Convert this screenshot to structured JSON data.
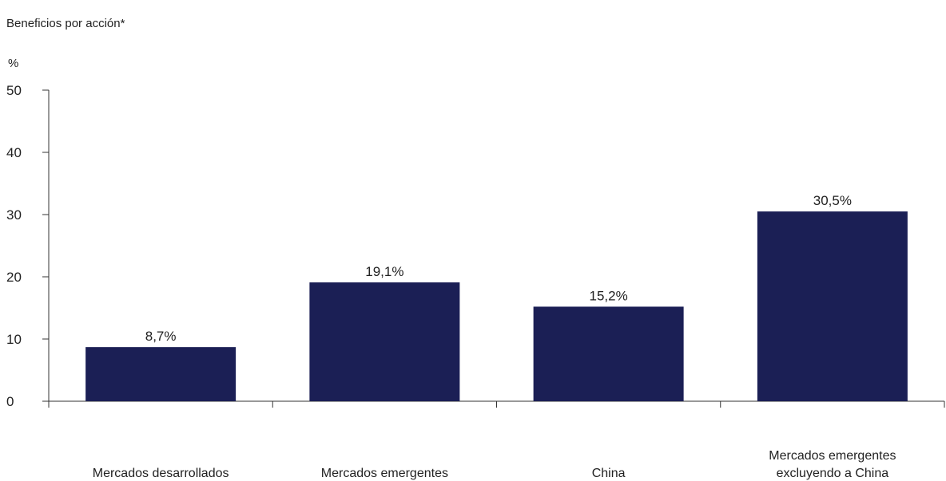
{
  "chart_data": {
    "type": "bar",
    "title": "Beneficios por acción*",
    "ylabel": "%",
    "xlabel": "",
    "categories": [
      [
        "Mercados desarrollados"
      ],
      [
        "Mercados emergentes"
      ],
      [
        "China"
      ],
      [
        "Mercados emergentes",
        "excluyendo a China"
      ]
    ],
    "values": [
      8.7,
      19.1,
      15.2,
      30.5
    ],
    "data_labels": [
      "8,7%",
      "19,1%",
      "15,2%",
      "30,5%"
    ],
    "ylim": [
      0,
      50
    ],
    "yticks": [
      0,
      10,
      20,
      30,
      40,
      50
    ],
    "ytick_labels": [
      "0",
      "10",
      "20",
      "30",
      "40",
      "50"
    ],
    "grid": false,
    "legend": "none",
    "bar_color": "#1b1f55"
  }
}
